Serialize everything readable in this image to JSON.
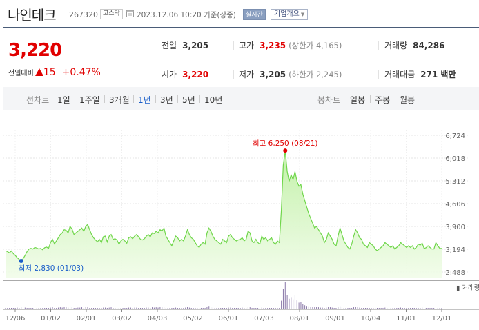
{
  "header": {
    "company_name": "나인테크",
    "code": "267320",
    "market": "코스닥",
    "datetime": "2023.12.06 10:20 기준(장중)",
    "realtime_label": "실시간",
    "info_menu_label": "기업개요"
  },
  "quote": {
    "price": "3,220",
    "change_label": "전일대비",
    "change_amount": "15",
    "change_percent": "+0.47%",
    "prev_close": {
      "label": "전일",
      "value": "3,205"
    },
    "high": {
      "label": "고가",
      "value": "3,235",
      "sub": "(상한가 4,165)"
    },
    "volume": {
      "label": "거래량",
      "value": "84,286"
    },
    "open": {
      "label": "시가",
      "value": "3,220"
    },
    "low": {
      "label": "저가",
      "value": "3,205",
      "sub": "(하한가 2,245)"
    },
    "trade_value": {
      "label": "거래대금",
      "value": "271 백만"
    }
  },
  "period_bar": {
    "line_label": "선차트",
    "line_periods": [
      "1일",
      "1주일",
      "3개월",
      "1년",
      "3년",
      "5년",
      "10년"
    ],
    "active_period": "1년",
    "candle_label": "봉차트",
    "candle_periods": [
      "일봉",
      "주봉",
      "월봉"
    ]
  },
  "colors": {
    "up": "#e10000",
    "active": "#1a5ec9",
    "line": "#6fd64a",
    "volume": "#8a78a8",
    "header_border": "#4a5c78"
  },
  "chart_data": {
    "type": "area",
    "x_labels": [
      "12/06",
      "01/02",
      "02/01",
      "03/02",
      "04/03",
      "05/02",
      "06/01",
      "07/03",
      "08/01",
      "09/01",
      "10/04",
      "11/01",
      "12/01"
    ],
    "y_ticks": [
      "6,724",
      "6,018",
      "5,312",
      "4,606",
      "3,900",
      "3,194",
      "2,488"
    ],
    "ylim": [
      2488,
      6724
    ],
    "series": [
      {
        "values": [
          3150,
          3120,
          3080,
          3140,
          3060,
          3000,
          2930,
          2880,
          2830,
          2900,
          3000,
          3120,
          3200,
          3220,
          3200,
          3250,
          3230,
          3200,
          3220,
          3180,
          3240,
          3260,
          3220,
          3400,
          3500,
          3360,
          3450,
          3550,
          3650,
          3700,
          3800,
          3780,
          3700,
          3900,
          3820,
          3650,
          3700,
          3750,
          3800,
          3850,
          3750,
          3900,
          3960,
          3800,
          3650,
          3550,
          3480,
          3420,
          3500,
          3400,
          3580,
          3600,
          3420,
          3600,
          3650,
          3500,
          3520,
          3480,
          3350,
          3450,
          3500,
          3450,
          3380,
          3550,
          3580,
          3520,
          3600,
          3650,
          3580,
          3500,
          3480,
          3520,
          3600,
          3650,
          3580,
          3700,
          3680,
          3750,
          3700,
          3800,
          3760,
          3850,
          3600,
          3500,
          3400,
          3300,
          3450,
          3600,
          3550,
          3450,
          3500,
          3450,
          3600,
          3800,
          3650,
          3550,
          3500,
          3400,
          3300,
          3250,
          3350,
          3400,
          3350,
          3700,
          3850,
          3750,
          3600,
          3500,
          3450,
          3400,
          3350,
          3500,
          3450,
          3400,
          3600,
          3650,
          3550,
          3500,
          3450,
          3480,
          3500,
          3550,
          3450,
          3500,
          3750,
          3700,
          3450,
          3400,
          3500,
          3400,
          3350,
          3600,
          3500,
          3550,
          3450,
          3500,
          3550,
          3400,
          3350,
          3450,
          3400,
          4400,
          5800,
          6250,
          5600,
          5300,
          5500,
          5350,
          5600,
          5300,
          5150,
          5200,
          4900,
          4700,
          4500,
          4300,
          4150,
          4000,
          3850,
          3900,
          3800,
          3700,
          3600,
          3400,
          3500,
          3700,
          3600,
          3500,
          3350,
          3300,
          3600,
          3850,
          3650,
          3450,
          3350,
          3250,
          3200,
          3350,
          3600,
          3800,
          3700,
          3550,
          3500,
          3350,
          3300,
          3250,
          3400,
          3350,
          3300,
          3200,
          3150,
          3200,
          3250,
          3300,
          3400,
          3350,
          3300,
          3250,
          3300,
          3200,
          3250,
          3300,
          3400,
          3350,
          3300,
          3250,
          3300,
          3250,
          3300,
          3200,
          3250,
          3350,
          3320,
          3380,
          3220,
          3240,
          3300,
          3250,
          3200,
          3200,
          3400,
          3300,
          3220,
          3220
        ]
      }
    ],
    "annotations": {
      "high": {
        "label": "최고 6,250 (08/21)",
        "value": 6250
      },
      "low": {
        "label": "최저 2,830 (01/03)",
        "value": 2830
      }
    },
    "volume_label": "거래량",
    "volume_values": [
      2,
      1,
      2,
      1,
      1,
      2,
      3,
      2,
      4,
      5,
      3,
      2,
      1,
      1,
      2,
      1,
      1,
      1,
      2,
      1,
      1,
      2,
      1,
      3,
      5,
      2,
      2,
      3,
      4,
      3,
      6,
      5,
      3,
      8,
      4,
      2,
      2,
      3,
      3,
      4,
      2,
      5,
      6,
      2,
      2,
      1,
      1,
      2,
      2,
      1,
      3,
      3,
      1,
      3,
      4,
      2,
      2,
      1,
      1,
      2,
      2,
      1,
      1,
      3,
      3,
      2,
      3,
      3,
      2,
      1,
      1,
      2,
      3,
      3,
      2,
      4,
      3,
      4,
      3,
      5,
      4,
      5,
      2,
      2,
      1,
      1,
      2,
      3,
      2,
      1,
      2,
      1,
      3,
      6,
      3,
      2,
      2,
      1,
      1,
      1,
      2,
      2,
      1,
      6,
      8,
      4,
      3,
      2,
      2,
      1,
      1,
      2,
      2,
      1,
      3,
      3,
      2,
      2,
      1,
      2,
      2,
      3,
      1,
      2,
      6,
      4,
      2,
      1,
      2,
      1,
      1,
      3,
      2,
      2,
      1,
      2,
      2,
      1,
      1,
      2,
      2,
      24,
      60,
      80,
      42,
      30,
      35,
      28,
      40,
      25,
      18,
      20,
      14,
      10,
      8,
      7,
      6,
      5,
      4,
      5,
      4,
      3,
      3,
      2,
      3,
      5,
      4,
      3,
      2,
      2,
      4,
      7,
      4,
      2,
      2,
      1,
      1,
      2,
      4,
      6,
      4,
      3,
      2,
      1,
      1,
      1,
      2,
      1,
      1,
      1,
      1,
      1,
      1,
      2,
      3,
      2,
      1,
      1,
      2,
      1,
      1,
      2,
      3,
      2,
      1,
      1,
      2,
      1,
      1,
      1,
      1,
      2,
      2,
      3,
      1,
      1,
      2,
      1,
      1,
      1,
      3,
      2,
      1,
      1
    ]
  }
}
